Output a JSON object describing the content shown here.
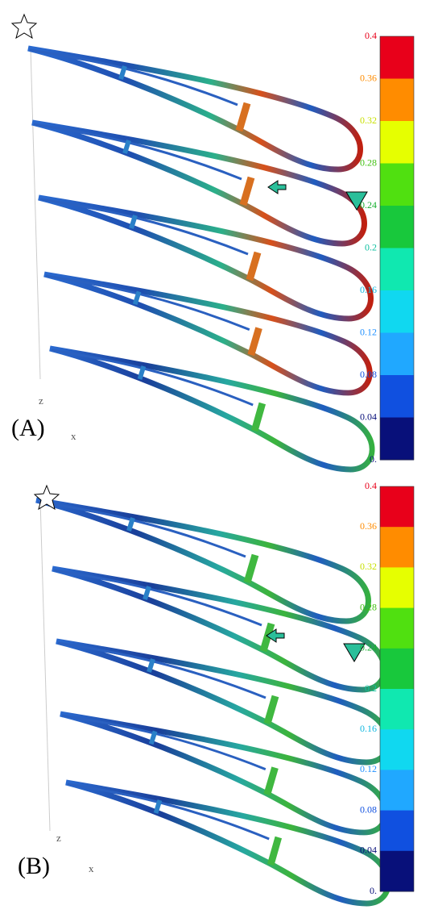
{
  "panels": [
    {
      "label": "(A)",
      "axis_labels": [
        "z",
        "x"
      ],
      "colorbar": {
        "ticks": [
          "0.4",
          "0.36",
          "0.32",
          "0.28",
          "0.24",
          "0.2",
          "0.16",
          "0.12",
          "0.08",
          "0.04",
          "0."
        ]
      }
    },
    {
      "label": "(B)",
      "axis_labels": [
        "z",
        "x"
      ],
      "colorbar": {
        "ticks": [
          "0.4",
          "0.36",
          "0.32",
          "0.28",
          "0.24",
          "0.2",
          "0.16",
          "0.12",
          "0.08",
          "0.04",
          "0."
        ]
      }
    }
  ]
}
